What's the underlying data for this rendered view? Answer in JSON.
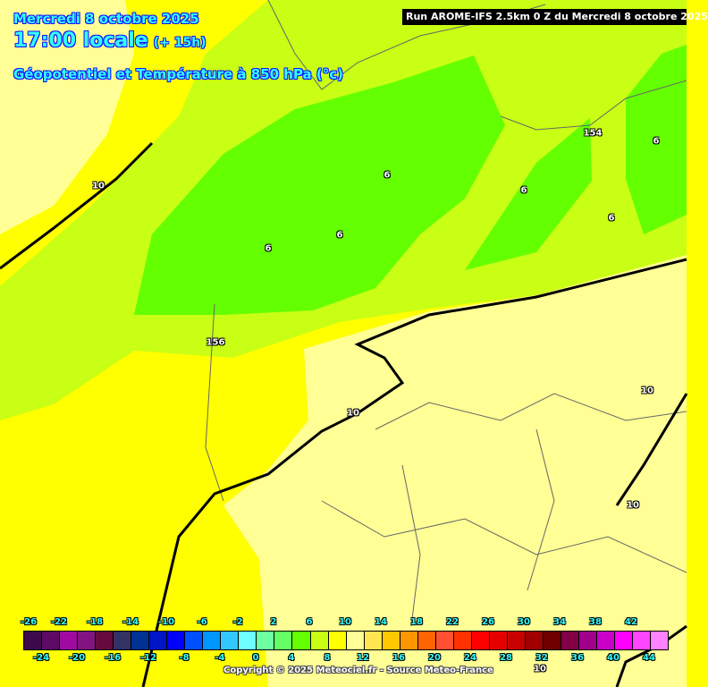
{
  "header": {
    "date": "Mercredi 8 octobre 2025",
    "time": "17:00 locale",
    "lead": "(+ 15h)",
    "parameter": "Géopotentiel et Température à 850 hPa (°c)",
    "run": "Run AROME-IFS 2.5km 0 Z du Mercredi 8 octobre 2025"
  },
  "map": {
    "contour_labels": [
      "10",
      "6",
      "6",
      "6",
      "156",
      "10",
      "6",
      "154",
      "6",
      "6",
      "10",
      "10",
      "10"
    ],
    "region_colors": {
      "temp_8_10": "#ffff00",
      "temp_10_12": "#ffff96",
      "temp_6_8": "#c8ff14",
      "temp_4_6": "#64ff00"
    }
  },
  "legend": {
    "unit": "°C",
    "values": [
      -26,
      -24,
      -22,
      -20,
      -18,
      -16,
      -14,
      -12,
      -10,
      -8,
      -6,
      -4,
      -2,
      0,
      2,
      4,
      6,
      8,
      10,
      12,
      14,
      16,
      18,
      20,
      22,
      24,
      26,
      28,
      30,
      32,
      34,
      36,
      38,
      40,
      42,
      44
    ],
    "colors": [
      "#3c0a4b",
      "#5c0a64",
      "#a00aa0",
      "#821482",
      "#640a3c",
      "#323264",
      "#003296",
      "#0014c8",
      "#0000ff",
      "#0050ff",
      "#0096ff",
      "#32c8ff",
      "#6effff",
      "#6effa0",
      "#64ff64",
      "#64ff00",
      "#c8ff14",
      "#ffff00",
      "#ffff96",
      "#ffe650",
      "#ffc800",
      "#ff9600",
      "#ff6400",
      "#ff5032",
      "#ff3200",
      "#ff0000",
      "#e60000",
      "#c80000",
      "#a00000",
      "#6e0000",
      "#820046",
      "#a0008c",
      "#c800c8",
      "#ff00ff",
      "#ff46ff",
      "#ff82ff"
    ],
    "top_labels": [
      "-26",
      "-22",
      "-18",
      "-14",
      "-10",
      "-6",
      "-2",
      "2",
      "6",
      "10",
      "14",
      "18",
      "22",
      "26",
      "30",
      "34",
      "38",
      "42"
    ],
    "bottom_labels": [
      "-24",
      "-20",
      "-16",
      "-12",
      "-8",
      "-4",
      "0",
      "4",
      "8",
      "12",
      "16",
      "20",
      "24",
      "28",
      "32",
      "36",
      "40",
      "44"
    ]
  },
  "copyright": "Copyright © 2025 Meteociel.fr - Source Meteo-France"
}
